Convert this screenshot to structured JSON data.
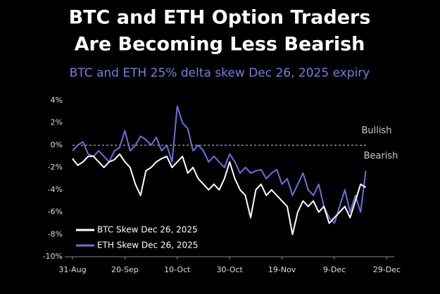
{
  "chart_data": {
    "type": "line",
    "title": [
      "BTC and ETH Option Traders",
      "Are Becoming Less Bearish"
    ],
    "subtitle": "BTC and ETH 25% delta skew Dec 26, 2025 expiry",
    "annotations": [
      "Bullish",
      "Bearish"
    ],
    "x": [
      "31-Aug",
      "2-Sep",
      "4-Sep",
      "6-Sep",
      "8-Sep",
      "10-Sep",
      "12-Sep",
      "14-Sep",
      "16-Sep",
      "18-Sep",
      "20-Sep",
      "22-Sep",
      "24-Sep",
      "26-Sep",
      "28-Sep",
      "30-Sep",
      "2-Oct",
      "4-Oct",
      "6-Oct",
      "8-Oct",
      "10-Oct",
      "12-Oct",
      "14-Oct",
      "16-Oct",
      "18-Oct",
      "20-Oct",
      "22-Oct",
      "24-Oct",
      "26-Oct",
      "28-Oct",
      "30-Oct",
      "1-Nov",
      "3-Nov",
      "5-Nov",
      "7-Nov",
      "9-Nov",
      "11-Nov",
      "13-Nov",
      "15-Nov",
      "17-Nov",
      "19-Nov",
      "21-Nov",
      "23-Nov",
      "25-Nov",
      "27-Nov",
      "29-Nov",
      "1-Dec",
      "3-Dec",
      "5-Dec",
      "7-Dec",
      "9-Dec",
      "11-Dec",
      "13-Dec",
      "15-Dec",
      "17-Dec",
      "19-Dec",
      "21-Dec"
    ],
    "xticks": [
      "31-Aug",
      "20-Sep",
      "10-Oct",
      "30-Oct",
      "19-Nov",
      "9-Dec",
      "29-Dec"
    ],
    "ylim": [
      -10,
      4
    ],
    "yticks": [
      {
        "value": 4,
        "label": "4%"
      },
      {
        "value": 2,
        "label": "2%"
      },
      {
        "value": 0,
        "label": "0%"
      },
      {
        "value": -2,
        "label": "-2%"
      },
      {
        "value": -4,
        "label": "-4%"
      },
      {
        "value": -6,
        "label": "-6%"
      },
      {
        "value": -8,
        "label": "-8%"
      },
      {
        "value": -10,
        "label": "-10%"
      }
    ],
    "legend": "lower left",
    "series": [
      {
        "name": "BTC Skew Dec 26, 2025",
        "color": "#ffffff",
        "values": [
          -1.2,
          -1.8,
          -1.5,
          -1,
          -1,
          -1.5,
          -2,
          -1.5,
          -1.3,
          -0.8,
          -1.5,
          -2,
          -3.5,
          -4.5,
          -2.3,
          -2,
          -1.5,
          -1.2,
          -1,
          -2,
          -1.5,
          -1,
          -2.5,
          -2,
          -3,
          -3.5,
          -4,
          -3.5,
          -4,
          -3,
          -1.5,
          -3,
          -4,
          -4.5,
          -6.5,
          -4,
          -3.5,
          -4.5,
          -4,
          -4.5,
          -5,
          -5.5,
          -8,
          -6,
          -5,
          -5.5,
          -5,
          -6,
          -5.5,
          -7,
          -6.5,
          -6,
          -5.5,
          -6.5,
          -5,
          -3.5,
          -3.8
        ]
      },
      {
        "name": "ETH Skew Dec 26, 2025",
        "color": "#6e6ee0",
        "values": [
          -0.5,
          0,
          0.3,
          -0.8,
          -1,
          -0.5,
          -1,
          -1.5,
          -0.5,
          -0.2,
          1.3,
          -0.5,
          0,
          0.8,
          0.5,
          0,
          0.7,
          -0.5,
          0,
          -1.5,
          3.5,
          2,
          1.5,
          -0.5,
          0,
          -0.5,
          -1.5,
          -1,
          -1.5,
          -2,
          -0.8,
          -1.5,
          -2.5,
          -2,
          -2.5,
          -2.3,
          -2.2,
          -3,
          -2.5,
          -2.2,
          -3.5,
          -3,
          -4.5,
          -3.5,
          -2.5,
          -4,
          -4.5,
          -3.5,
          -5.5,
          -6.5,
          -7,
          -5.5,
          -4,
          -6,
          -4.5,
          -6,
          -2.3
        ]
      }
    ]
  }
}
